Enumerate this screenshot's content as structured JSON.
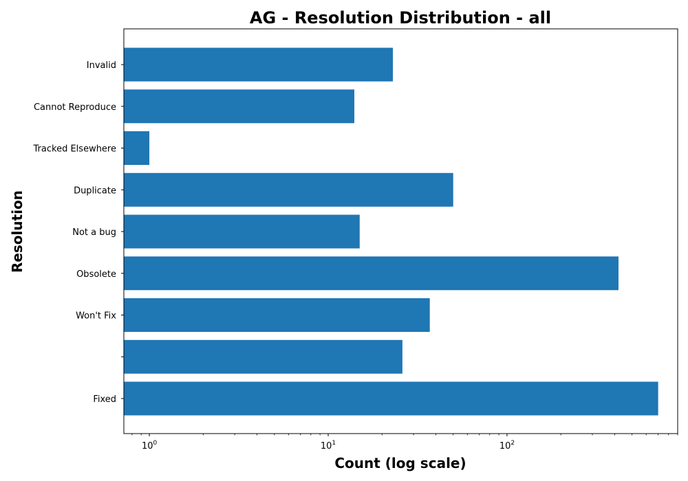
{
  "chart_data": {
    "type": "bar",
    "orientation": "horizontal",
    "title": "AG - Resolution Distribution - all",
    "xlabel": "Count (log scale)",
    "ylabel": "Resolution",
    "x_scale": "log",
    "xlim": [
      0.72,
      900
    ],
    "x_ticks": [
      {
        "value": 1,
        "base": "10",
        "exp": "0"
      },
      {
        "value": 10,
        "base": "10",
        "exp": "1"
      },
      {
        "value": 100,
        "base": "10",
        "exp": "2"
      }
    ],
    "categories": [
      "Invalid",
      "Cannot Reproduce",
      "Tracked Elsewhere",
      "Duplicate",
      "Not a bug",
      "Obsolete",
      "Won't Fix",
      "",
      "Fixed"
    ],
    "values": [
      23,
      14,
      1,
      50,
      15,
      420,
      37,
      26,
      700
    ],
    "bar_color": "#1f77b4",
    "grid": false
  }
}
